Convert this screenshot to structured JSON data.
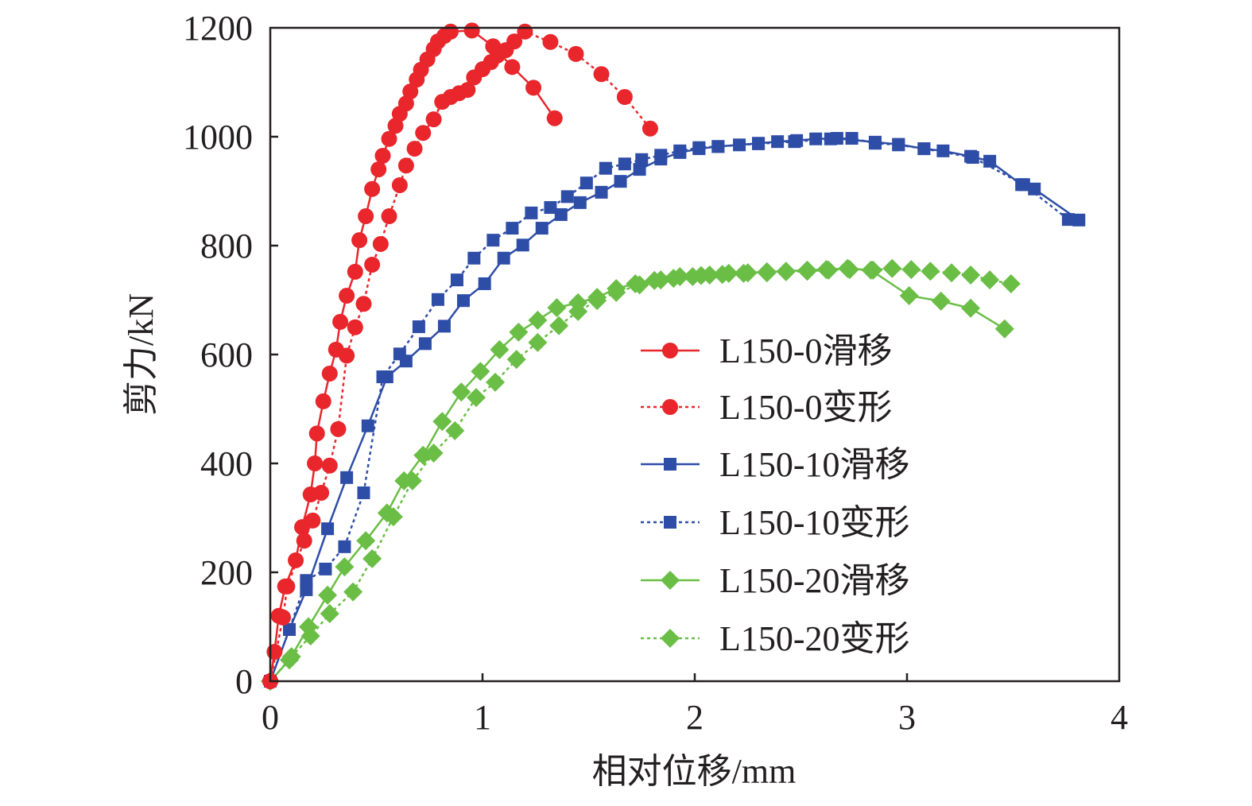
{
  "chart_data": {
    "type": "line",
    "xlabel": "相对位移/mm",
    "ylabel": "剪力/kN",
    "xlim": [
      0,
      4
    ],
    "ylim": [
      0,
      1200
    ],
    "xticks": [
      "0",
      "1",
      "2",
      "3",
      "4"
    ],
    "xtick_values": [
      0,
      1,
      2,
      3,
      4
    ],
    "yticks": [
      "0",
      "200",
      "400",
      "600",
      "800",
      "1000",
      "1200"
    ],
    "ytick_values": [
      0,
      200,
      400,
      600,
      800,
      1000,
      1200
    ],
    "grid": false,
    "legend_position": "center-right",
    "series": [
      {
        "name": "L150-0滑移",
        "color": "#E8262B",
        "marker": "circle",
        "line": "solid",
        "x": [
          0,
          0.02,
          0.04,
          0.07,
          0.12,
          0.15,
          0.19,
          0.21,
          0.22,
          0.25,
          0.28,
          0.31,
          0.33,
          0.36,
          0.4,
          0.42,
          0.45,
          0.48,
          0.51,
          0.53,
          0.56,
          0.59,
          0.61,
          0.64,
          0.66,
          0.69,
          0.71,
          0.74,
          0.77,
          0.79,
          0.82,
          0.85,
          0.95,
          1.05,
          1.14,
          1.24,
          1.34
        ],
        "y": [
          0,
          54,
          120,
          174,
          222,
          283,
          343,
          400,
          455,
          514,
          565,
          609,
          660,
          708,
          752,
          810,
          854,
          904,
          940,
          965,
          996,
          1020,
          1042,
          1061,
          1083,
          1105,
          1123,
          1142,
          1161,
          1175,
          1185,
          1193,
          1195,
          1166,
          1128,
          1090,
          1034
        ]
      },
      {
        "name": "L150-0变形",
        "color": "#E8262B",
        "marker": "circle",
        "line": "dashed",
        "x": [
          0,
          0.06,
          0.08,
          0.16,
          0.2,
          0.24,
          0.28,
          0.32,
          0.36,
          0.4,
          0.44,
          0.48,
          0.52,
          0.56,
          0.61,
          0.64,
          0.68,
          0.72,
          0.77,
          0.81,
          0.85,
          0.89,
          0.93,
          0.96,
          1.0,
          1.04,
          1.07,
          1.11,
          1.15,
          1.2,
          1.32,
          1.44,
          1.56,
          1.67,
          1.79
        ],
        "y": [
          0,
          117,
          174,
          258,
          295,
          346,
          396,
          463,
          598,
          650,
          693,
          765,
          803,
          854,
          911,
          947,
          978,
          1007,
          1032,
          1064,
          1073,
          1080,
          1086,
          1109,
          1124,
          1137,
          1149,
          1159,
          1175,
          1193,
          1174,
          1152,
          1115,
          1073,
          1015
        ]
      },
      {
        "name": "L150-10滑移",
        "color": "#2E4DA7",
        "marker": "square",
        "line": "solid",
        "x": [
          0,
          0.09,
          0.17,
          0.27,
          0.36,
          0.46,
          0.55,
          0.64,
          0.73,
          0.82,
          0.91,
          1.01,
          1.1,
          1.19,
          1.28,
          1.37,
          1.46,
          1.56,
          1.65,
          1.74,
          1.84,
          1.93,
          2.02,
          2.11,
          2.21,
          2.3,
          2.39,
          2.48,
          2.57,
          2.67,
          2.85,
          2.96,
          3.08,
          3.17,
          3.3,
          3.39,
          3.54,
          3.6,
          3.81
        ],
        "y": [
          0,
          95,
          168,
          280,
          374,
          469,
          559,
          588,
          620,
          652,
          699,
          730,
          777,
          801,
          832,
          857,
          879,
          898,
          918,
          940,
          959,
          971,
          978,
          982,
          985,
          988,
          991,
          993,
          996,
          997,
          990,
          986,
          978,
          974,
          964,
          955,
          912,
          904,
          847
        ]
      },
      {
        "name": "L150-10变形",
        "color": "#2E4DA7",
        "marker": "square",
        "line": "dashed",
        "x": [
          0,
          0.09,
          0.17,
          0.26,
          0.35,
          0.44,
          0.53,
          0.61,
          0.7,
          0.79,
          0.88,
          0.96,
          1.05,
          1.14,
          1.23,
          1.32,
          1.4,
          1.49,
          1.58,
          1.67,
          1.75,
          1.84,
          1.93,
          2.02,
          2.11,
          2.3,
          2.47,
          2.64,
          2.74,
          2.85,
          2.96,
          3.08,
          3.31,
          3.55,
          3.76
        ],
        "y": [
          0,
          95,
          185,
          206,
          247,
          346,
          559,
          601,
          651,
          701,
          737,
          777,
          810,
          832,
          860,
          870,
          890,
          915,
          942,
          950,
          958,
          966,
          974,
          980,
          982,
          987,
          991,
          996,
          997,
          988,
          985,
          978,
          962,
          912,
          848
        ]
      },
      {
        "name": "L150-20滑移",
        "color": "#6ABE45",
        "marker": "diamond",
        "line": "solid",
        "x": [
          0,
          0.09,
          0.18,
          0.27,
          0.35,
          0.45,
          0.55,
          0.63,
          0.72,
          0.81,
          0.9,
          0.99,
          1.08,
          1.17,
          1.26,
          1.35,
          1.45,
          1.54,
          1.63,
          1.72,
          1.81,
          1.9,
          1.99,
          2.07,
          2.16,
          2.25,
          2.34,
          2.43,
          2.53,
          2.62,
          2.72,
          2.83,
          3.01,
          3.16,
          3.3,
          3.46
        ],
        "y": [
          0,
          39,
          100,
          158,
          210,
          258,
          309,
          368,
          415,
          477,
          531,
          569,
          609,
          641,
          663,
          686,
          695,
          705,
          721,
          730,
          736,
          740,
          743,
          746,
          749,
          750,
          752,
          753,
          755,
          756,
          758,
          755,
          708,
          698,
          685,
          647
        ]
      },
      {
        "name": "L150-20变形",
        "color": "#6ABE45",
        "marker": "diamond",
        "line": "dashed",
        "x": [
          0,
          0.1,
          0.19,
          0.28,
          0.39,
          0.48,
          0.58,
          0.67,
          0.77,
          0.87,
          0.97,
          1.06,
          1.16,
          1.26,
          1.36,
          1.45,
          1.54,
          1.63,
          1.74,
          1.84,
          1.93,
          2.03,
          2.13,
          2.23,
          2.34,
          2.43,
          2.53,
          2.63,
          2.73,
          2.84,
          2.93,
          3.02,
          3.11,
          3.21,
          3.3,
          3.39,
          3.49
        ],
        "y": [
          0,
          45,
          83,
          124,
          164,
          225,
          302,
          368,
          419,
          460,
          521,
          549,
          591,
          622,
          653,
          679,
          699,
          714,
          728,
          737,
          743,
          745,
          747,
          749,
          750,
          752,
          753,
          755,
          756,
          755,
          758,
          756,
          753,
          750,
          746,
          737,
          730
        ]
      }
    ]
  }
}
